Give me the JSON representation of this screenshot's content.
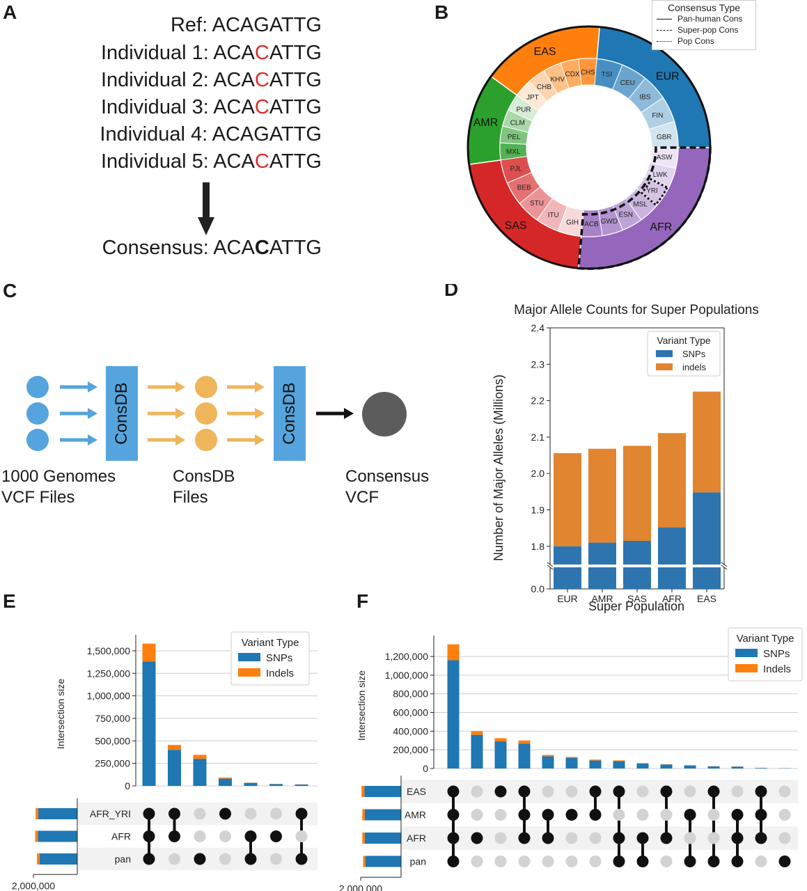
{
  "panels": {
    "a": "A",
    "b": "B",
    "c": "C",
    "d": "D",
    "e": "E",
    "f": "F"
  },
  "panel_a": {
    "rows": [
      {
        "label": "Ref:",
        "pre": "ACAG",
        "mid": "",
        "post": "ATTG"
      },
      {
        "label": "Individual 1:",
        "pre": "ACA",
        "mid": "C",
        "post": "ATTG"
      },
      {
        "label": "Individual 2:",
        "pre": "ACA",
        "mid": "C",
        "post": "ATTG"
      },
      {
        "label": "Individual 3:",
        "pre": "ACA",
        "mid": "C",
        "post": "ATTG"
      },
      {
        "label": "Individual 4:",
        "pre": "ACAG",
        "mid": "",
        "post": "ATTG"
      },
      {
        "label": "Individual 5:",
        "pre": "ACA",
        "mid": "C",
        "post": "ATTG"
      }
    ],
    "consensus": {
      "label": "Consensus:",
      "pre": "ACA",
      "mid": "C",
      "post": "ATTG"
    },
    "highlight_color": "#e02a2a"
  },
  "panel_b": {
    "legend_title": "Consensus Type",
    "legend": [
      "Pan-human Cons",
      "Super-pop Cons",
      "Pop Cons"
    ],
    "super_pops": [
      {
        "name": "EUR",
        "color": "#1f77b4"
      },
      {
        "name": "AFR",
        "color": "#9467bd"
      },
      {
        "name": "SAS",
        "color": "#d62728"
      },
      {
        "name": "AMR",
        "color": "#2ca02c"
      },
      {
        "name": "EAS",
        "color": "#ff7f0e"
      }
    ],
    "pops": {
      "EUR": [
        "TSI",
        "CEU",
        "IBS",
        "FIN",
        "GBR"
      ],
      "AFR": [
        "ASW",
        "LWK",
        "YRI",
        "MSL",
        "ESN",
        "GWD",
        "ACB"
      ],
      "SAS": [
        "GIH",
        "ITU",
        "STU",
        "BEB",
        "PJL"
      ],
      "AMR": [
        "MXL",
        "PEL",
        "CLM",
        "PUR"
      ],
      "EAS": [
        "JPT",
        "CHB",
        "KHV",
        "CDX",
        "CHS"
      ]
    }
  },
  "panel_c": {
    "consdb": "ConsDB",
    "labels": [
      [
        "1000 Genomes",
        "VCF Files"
      ],
      [
        "ConsDB",
        "Files"
      ],
      [
        "Consensus",
        "VCF"
      ]
    ],
    "colors": {
      "blue": "#55a4dd",
      "orange": "#efb55a",
      "gray": "#5c5c5c"
    }
  },
  "chart_data": [
    {
      "id": "D",
      "type": "bar",
      "title": "Major Allele Counts for Super Populations",
      "xlabel": "Super Population",
      "ylabel": "Number of Major Alleles (Millions)",
      "categories": [
        "EUR",
        "AMR",
        "SAS",
        "AFR",
        "EAS"
      ],
      "series": [
        {
          "name": "SNPs",
          "values": [
            1.8,
            1.81,
            1.815,
            1.852,
            1.948
          ],
          "color": "#2e75b0"
        },
        {
          "name": "indels",
          "values": [
            0.256,
            0.258,
            0.261,
            0.259,
            0.277
          ],
          "color": "#e18530"
        }
      ],
      "ylim": [
        1.75,
        2.4
      ],
      "ylim_lower": [
        0.0,
        0.05
      ],
      "yticks": [
        "1.8",
        "1.9",
        "2.0",
        "2.1",
        "2.2",
        "2.3",
        "2.4"
      ],
      "ytick_zero": "0.0",
      "axis_break": true,
      "legend_title": "Variant Type",
      "legend_placement": "top-right",
      "grid": false
    },
    {
      "id": "E",
      "type": "bar",
      "subtype": "upset",
      "ylabel": "Intersection size",
      "ylim": [
        0,
        1600000
      ],
      "yticks": [
        "0",
        "250,000",
        "500,000",
        "750,000",
        "1,000,000",
        "1,250,000",
        "1,500,000"
      ],
      "legend_title": "Variant Type",
      "legend_placement": "top-right",
      "series_names": [
        "SNPs",
        "Indels"
      ],
      "colors": {
        "snp": "#1f77b4",
        "indel": "#ff7f0e"
      },
      "sets": [
        "AFR_YRI",
        "AFR",
        "pan"
      ],
      "set_totals": {
        "snps": [
          1.78,
          1.8,
          1.72
        ],
        "indels": [
          0.12,
          0.12,
          0.12
        ]
      },
      "set_size_axis_label": "2,000,000",
      "intersections": [
        {
          "members": [
            1,
            1,
            1
          ],
          "snps": 1380000,
          "indels": 200000
        },
        {
          "members": [
            1,
            1,
            0
          ],
          "snps": 400000,
          "indels": 55000
        },
        {
          "members": [
            0,
            0,
            1
          ],
          "snps": 300000,
          "indels": 45000
        },
        {
          "members": [
            1,
            0,
            0
          ],
          "snps": 80000,
          "indels": 12000
        },
        {
          "members": [
            0,
            1,
            1
          ],
          "snps": 33000,
          "indels": 3000
        },
        {
          "members": [
            0,
            1,
            0
          ],
          "snps": 20000,
          "indels": 2000
        },
        {
          "members": [
            1,
            0,
            1
          ],
          "snps": 15000,
          "indels": 2000
        }
      ]
    },
    {
      "id": "F",
      "type": "bar",
      "subtype": "upset",
      "ylabel": "Intersection size",
      "ylim": [
        0,
        1350000
      ],
      "yticks": [
        "0",
        "200,000",
        "400,000",
        "600,000",
        "800,000",
        "1,000,000",
        "1,200,000"
      ],
      "legend_title": "Variant Type",
      "legend_placement": "top-right",
      "series_names": [
        "SNPs",
        "Indels"
      ],
      "colors": {
        "snp": "#1f77b4",
        "indel": "#ff7f0e"
      },
      "sets": [
        "EAS",
        "AMR",
        "AFR",
        "pan"
      ],
      "set_totals": {
        "snps": [
          1.82,
          1.8,
          1.8,
          1.76
        ],
        "indels": [
          0.14,
          0.12,
          0.12,
          0.12
        ]
      },
      "set_size_axis_label": "2,000,000",
      "intersections": [
        {
          "members": [
            1,
            1,
            1,
            1
          ],
          "snps": 1160000,
          "indels": 170000
        },
        {
          "members": [
            0,
            0,
            1,
            0
          ],
          "snps": 360000,
          "indels": 40000
        },
        {
          "members": [
            1,
            0,
            0,
            0
          ],
          "snps": 290000,
          "indels": 35000
        },
        {
          "members": [
            1,
            1,
            1,
            0
          ],
          "snps": 265000,
          "indels": 35000
        },
        {
          "members": [
            0,
            1,
            1,
            0
          ],
          "snps": 130000,
          "indels": 15000
        },
        {
          "members": [
            0,
            1,
            0,
            0
          ],
          "snps": 112000,
          "indels": 12000
        },
        {
          "members": [
            1,
            1,
            0,
            0
          ],
          "snps": 85000,
          "indels": 10000
        },
        {
          "members": [
            1,
            0,
            1,
            1
          ],
          "snps": 78000,
          "indels": 9000
        },
        {
          "members": [
            0,
            0,
            1,
            1
          ],
          "snps": 52000,
          "indels": 5000
        },
        {
          "members": [
            1,
            0,
            1,
            0
          ],
          "snps": 42000,
          "indels": 4000
        },
        {
          "members": [
            0,
            1,
            0,
            1
          ],
          "snps": 32000,
          "indels": 3000
        },
        {
          "members": [
            1,
            0,
            0,
            1
          ],
          "snps": 22000,
          "indels": 2000
        },
        {
          "members": [
            0,
            1,
            1,
            1
          ],
          "snps": 20000,
          "indels": 2000
        },
        {
          "members": [
            1,
            1,
            1,
            0
          ],
          "snps": 6000,
          "indels": 1000
        },
        {
          "members": [
            0,
            0,
            0,
            1
          ],
          "snps": 3000,
          "indels": 500
        }
      ]
    }
  ]
}
